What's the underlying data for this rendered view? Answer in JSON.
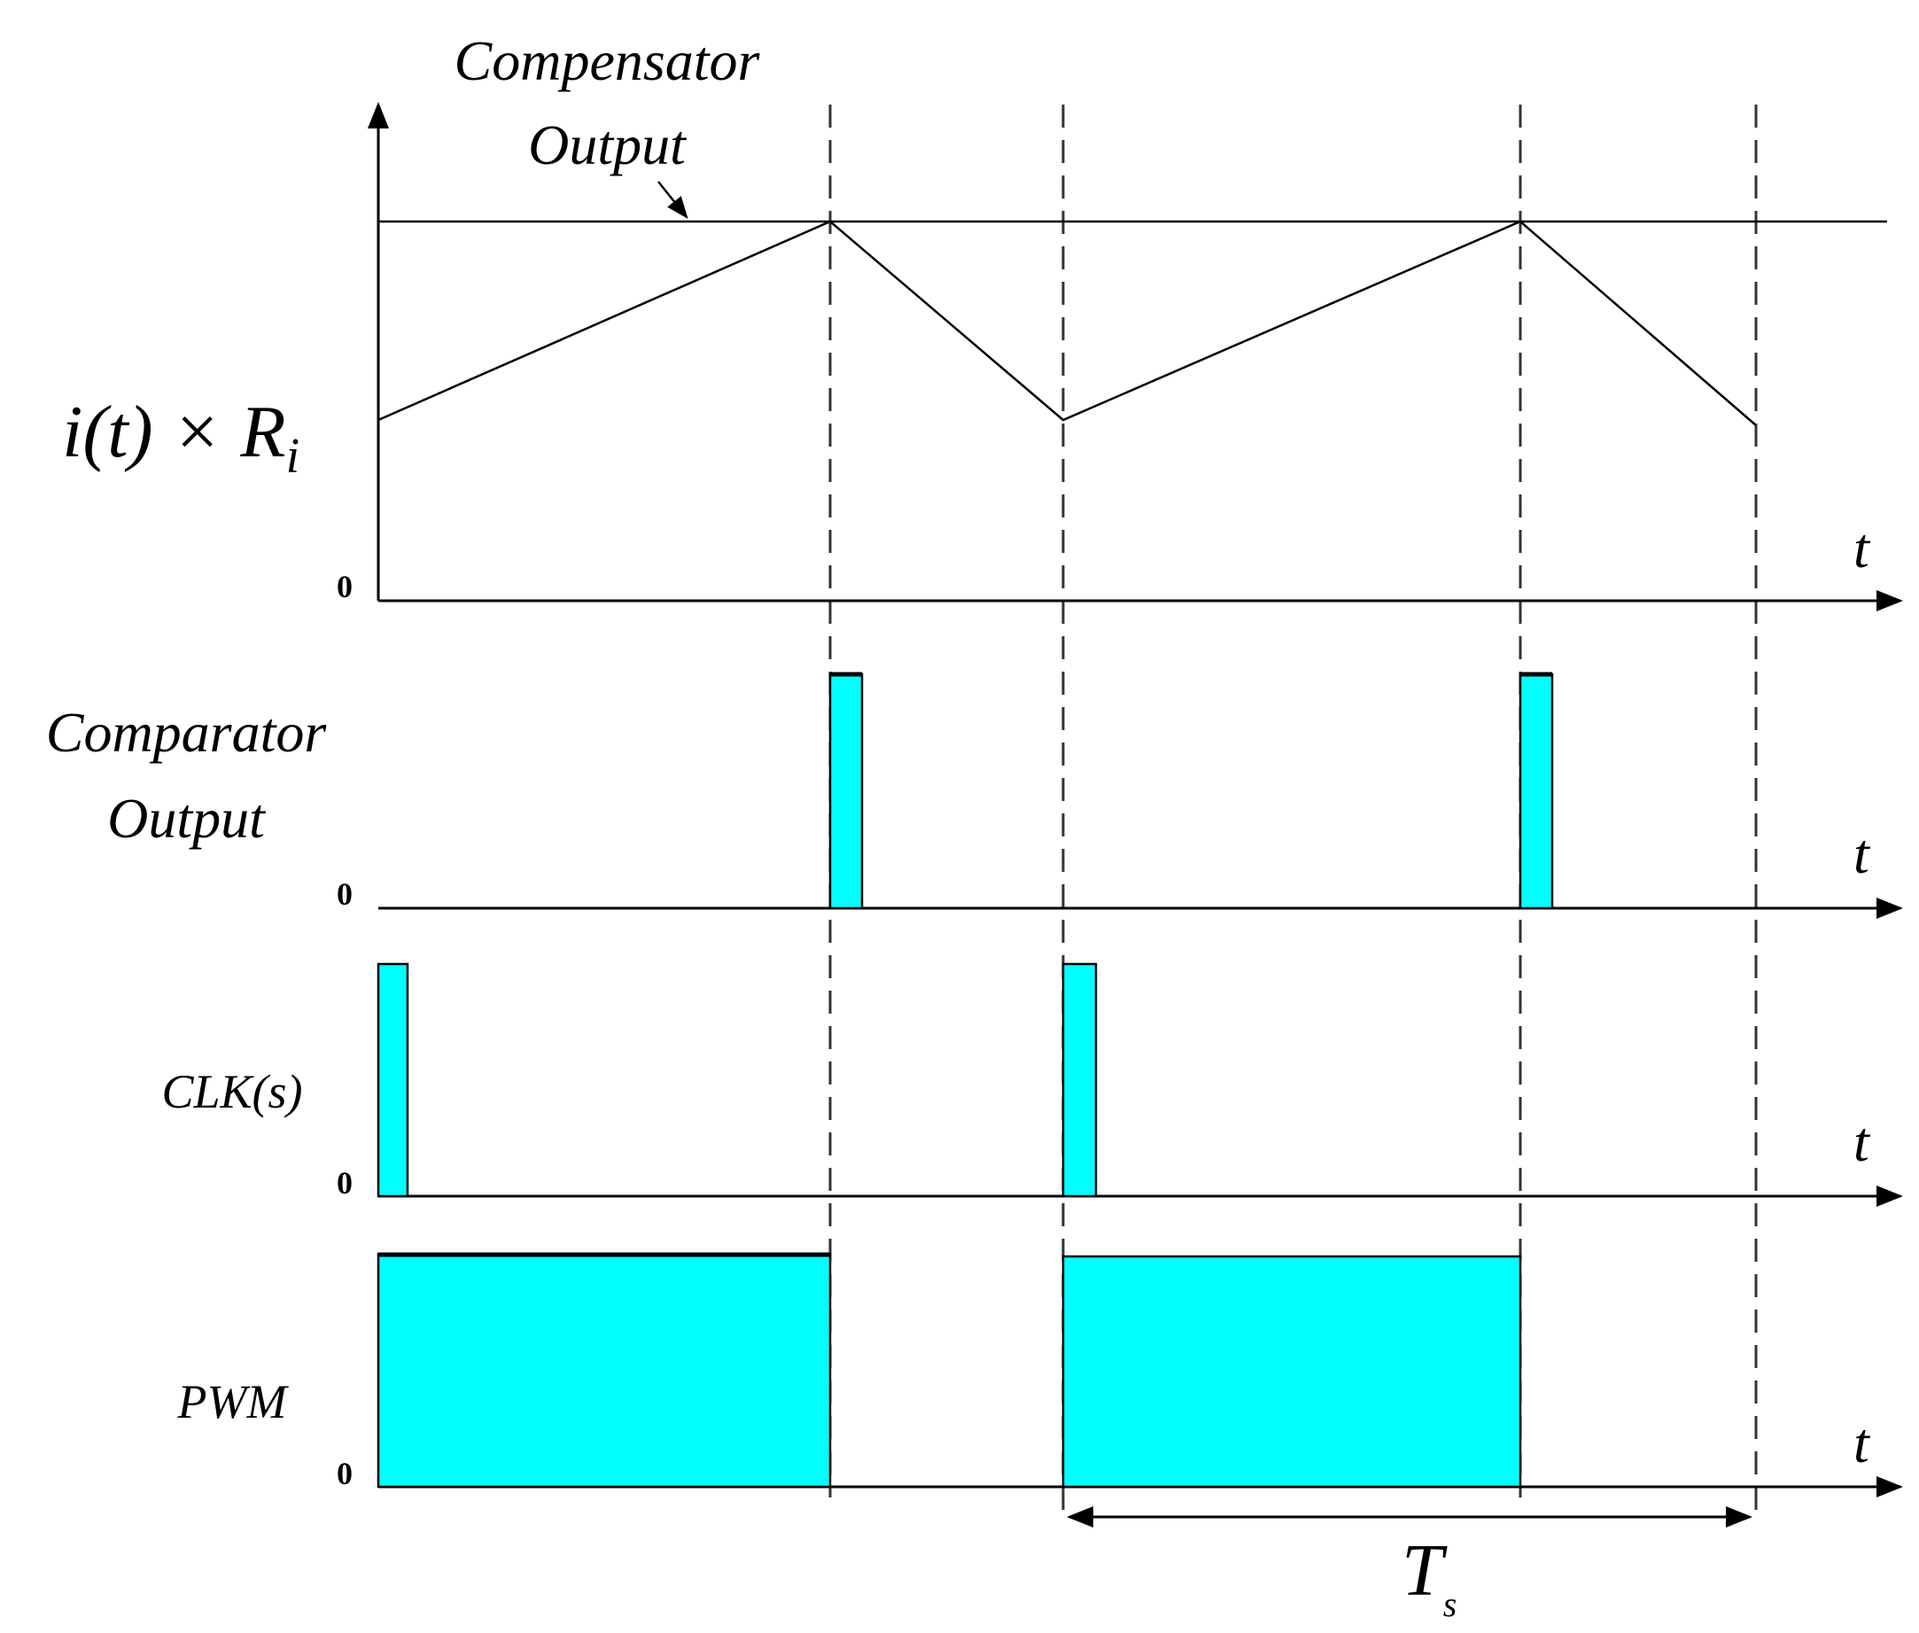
{
  "labels": {
    "compensator_line1": "Compensator",
    "compensator_line2": "Output",
    "current_sense": "i(t) × R",
    "current_sense_sub": "i",
    "comparator_line1": "Comparator",
    "comparator_line2": "Output",
    "clk": "CLK(s)",
    "pwm": "PWM",
    "period": "T",
    "period_sub": "s"
  },
  "axes": {
    "time_label": "t",
    "zero_label": "0"
  },
  "colors": {
    "pulse_fill": "#00FFFF",
    "line": "#000000"
  }
}
